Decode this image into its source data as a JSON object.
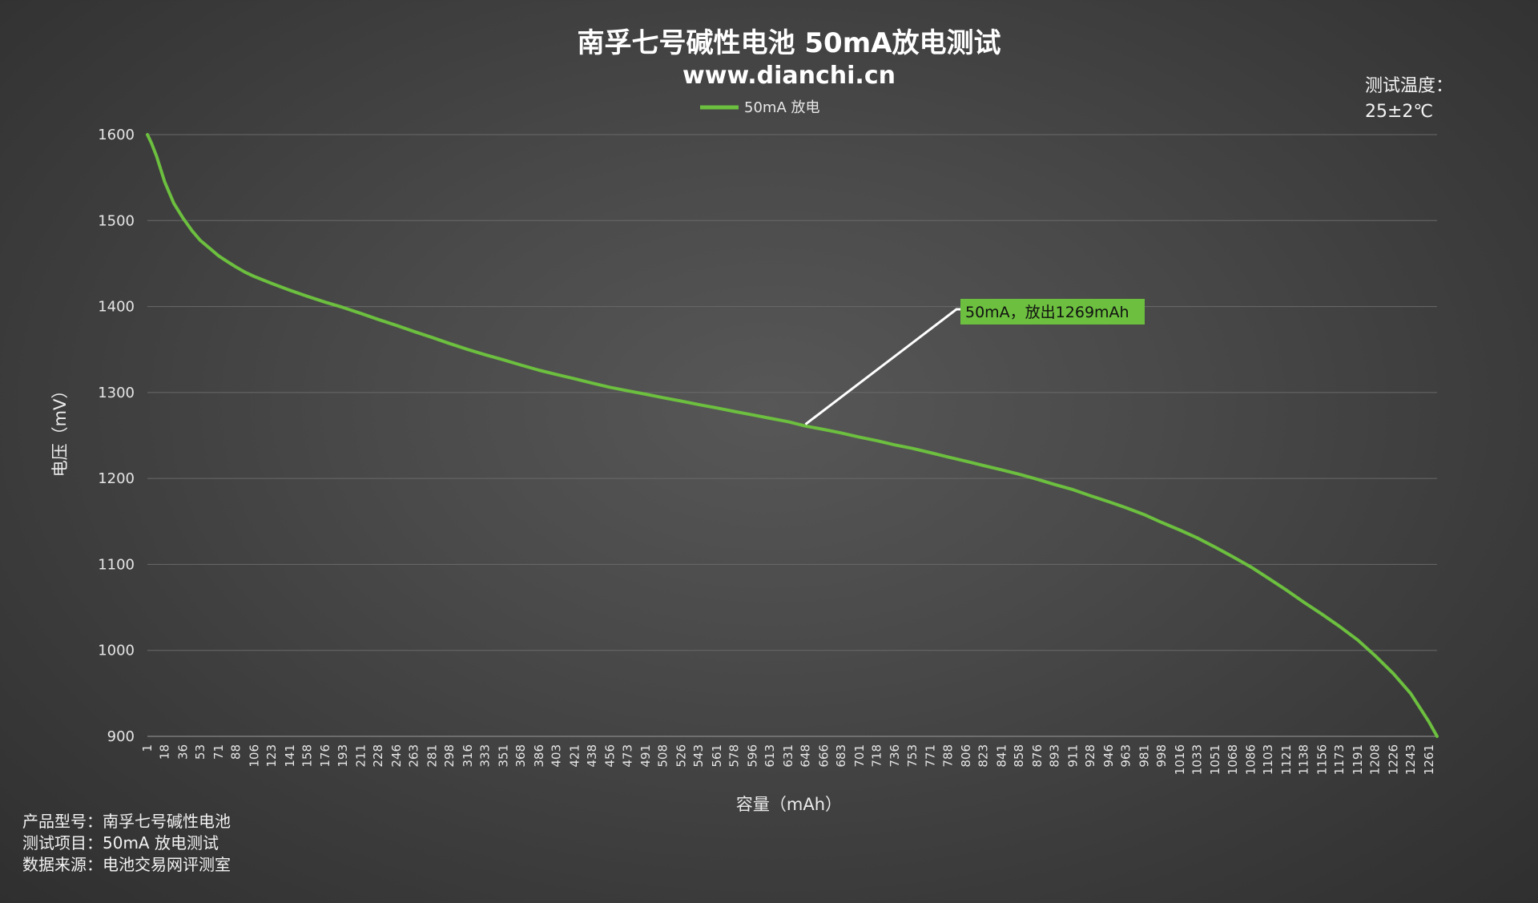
{
  "chart_data": {
    "type": "line",
    "title": "南孚七号碱性电池 50mA放电测试",
    "subtitle": "www.dianchi.cn",
    "xlabel": "容量（mAh）",
    "ylabel": "电压（mV）",
    "ylim": [
      900,
      1600
    ],
    "yticks": [
      900,
      1000,
      1100,
      1200,
      1300,
      1400,
      1500,
      1600
    ],
    "xlim": [
      1,
      1269
    ],
    "xticks": [
      1,
      18,
      36,
      53,
      71,
      88,
      106,
      123,
      141,
      158,
      176,
      193,
      211,
      228,
      246,
      263,
      281,
      298,
      316,
      333,
      351,
      368,
      386,
      403,
      421,
      438,
      456,
      473,
      491,
      508,
      526,
      543,
      561,
      578,
      596,
      613,
      631,
      648,
      666,
      683,
      701,
      718,
      736,
      753,
      771,
      788,
      806,
      823,
      841,
      858,
      876,
      893,
      911,
      928,
      946,
      963,
      981,
      998,
      1016,
      1033,
      1051,
      1068,
      1086,
      1103,
      1121,
      1138,
      1156,
      1173,
      1191,
      1208,
      1226,
      1243,
      1261
    ],
    "grid": true,
    "legend_position": "top-center",
    "series": [
      {
        "name": "50mA 放电",
        "color": "#6cbf3f",
        "points": [
          [
            1,
            1600
          ],
          [
            5,
            1590
          ],
          [
            10,
            1575
          ],
          [
            18,
            1545
          ],
          [
            27,
            1520
          ],
          [
            36,
            1503
          ],
          [
            45,
            1488
          ],
          [
            53,
            1477
          ],
          [
            62,
            1468
          ],
          [
            71,
            1459
          ],
          [
            80,
            1452
          ],
          [
            88,
            1446
          ],
          [
            97,
            1440
          ],
          [
            106,
            1435
          ],
          [
            123,
            1427
          ],
          [
            141,
            1419
          ],
          [
            158,
            1412
          ],
          [
            176,
            1405
          ],
          [
            193,
            1399
          ],
          [
            211,
            1392
          ],
          [
            228,
            1385
          ],
          [
            246,
            1378
          ],
          [
            263,
            1371
          ],
          [
            281,
            1364
          ],
          [
            298,
            1357
          ],
          [
            316,
            1350
          ],
          [
            333,
            1344
          ],
          [
            351,
            1338
          ],
          [
            368,
            1332
          ],
          [
            386,
            1326
          ],
          [
            403,
            1321
          ],
          [
            421,
            1316
          ],
          [
            438,
            1311
          ],
          [
            456,
            1306
          ],
          [
            473,
            1302
          ],
          [
            491,
            1298
          ],
          [
            508,
            1294
          ],
          [
            526,
            1290
          ],
          [
            543,
            1286
          ],
          [
            561,
            1282
          ],
          [
            578,
            1278
          ],
          [
            596,
            1274
          ],
          [
            613,
            1270
          ],
          [
            631,
            1266
          ],
          [
            648,
            1261
          ],
          [
            666,
            1257
          ],
          [
            683,
            1253
          ],
          [
            701,
            1248
          ],
          [
            718,
            1244
          ],
          [
            736,
            1239
          ],
          [
            753,
            1235
          ],
          [
            771,
            1230
          ],
          [
            788,
            1225
          ],
          [
            806,
            1220
          ],
          [
            823,
            1215
          ],
          [
            841,
            1210
          ],
          [
            858,
            1205
          ],
          [
            876,
            1199
          ],
          [
            893,
            1193
          ],
          [
            911,
            1187
          ],
          [
            928,
            1180
          ],
          [
            946,
            1173
          ],
          [
            963,
            1166
          ],
          [
            981,
            1158
          ],
          [
            998,
            1149
          ],
          [
            1016,
            1140
          ],
          [
            1033,
            1131
          ],
          [
            1051,
            1120
          ],
          [
            1068,
            1109
          ],
          [
            1086,
            1097
          ],
          [
            1103,
            1084
          ],
          [
            1121,
            1070
          ],
          [
            1138,
            1056
          ],
          [
            1156,
            1042
          ],
          [
            1173,
            1028
          ],
          [
            1191,
            1012
          ],
          [
            1208,
            994
          ],
          [
            1226,
            973
          ],
          [
            1243,
            950
          ],
          [
            1255,
            928
          ],
          [
            1261,
            917
          ],
          [
            1269,
            900
          ]
        ]
      }
    ],
    "annotation": {
      "text": "50mA，放出1269mAh",
      "point": [
        648,
        1263
      ],
      "color": "#6cbf3f"
    }
  },
  "info": {
    "temperature_label": "测试温度：",
    "temperature_value": "25±2℃",
    "product_line": "产品型号：南孚七号碱性电池",
    "test_line": "测试项目：50mA 放电测试",
    "source_line": "数据来源：电池交易网评测室"
  }
}
